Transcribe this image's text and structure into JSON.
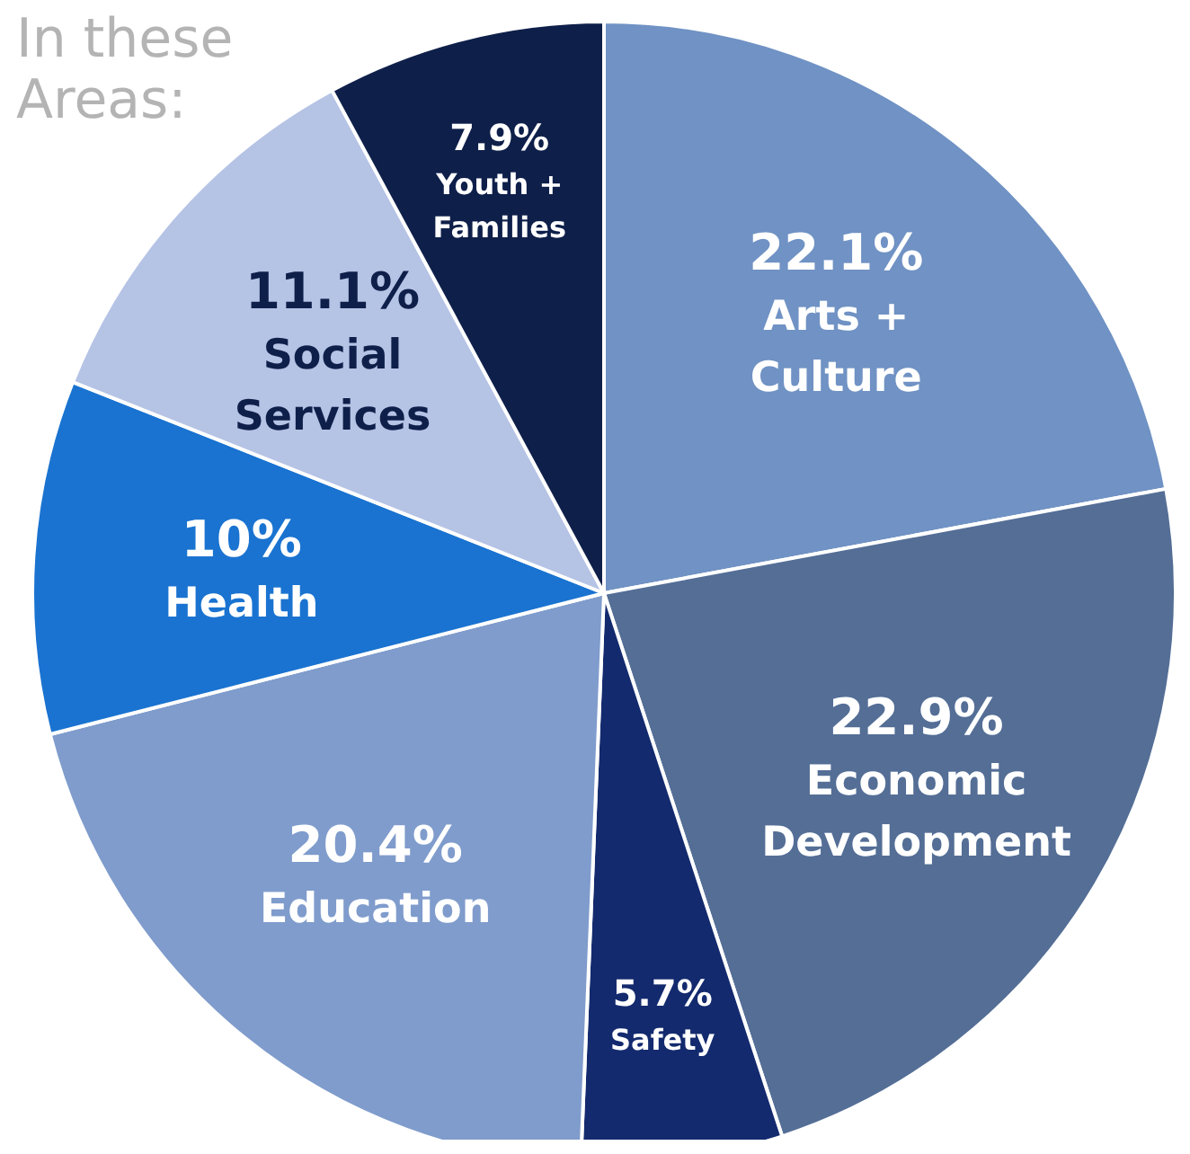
{
  "chart_data": {
    "type": "pie",
    "title": "In these Areas:",
    "categories": [
      "Arts + Culture",
      "Economic Development",
      "Safety",
      "Education",
      "Health",
      "Social Services",
      "Youth + Families"
    ],
    "values": [
      22.1,
      22.9,
      5.7,
      20.4,
      10,
      11.1,
      7.9
    ],
    "value_labels": [
      "22.1%",
      "22.9%",
      "5.7%",
      "20.4%",
      "10%",
      "11.1%",
      "7.9%"
    ],
    "colors": [
      "#7092c4",
      "#546e96",
      "#132a6e",
      "#7f9ccc",
      "#1a73d0",
      "#b5c3e5",
      "#0e1f4a"
    ],
    "data_labels": true
  }
}
